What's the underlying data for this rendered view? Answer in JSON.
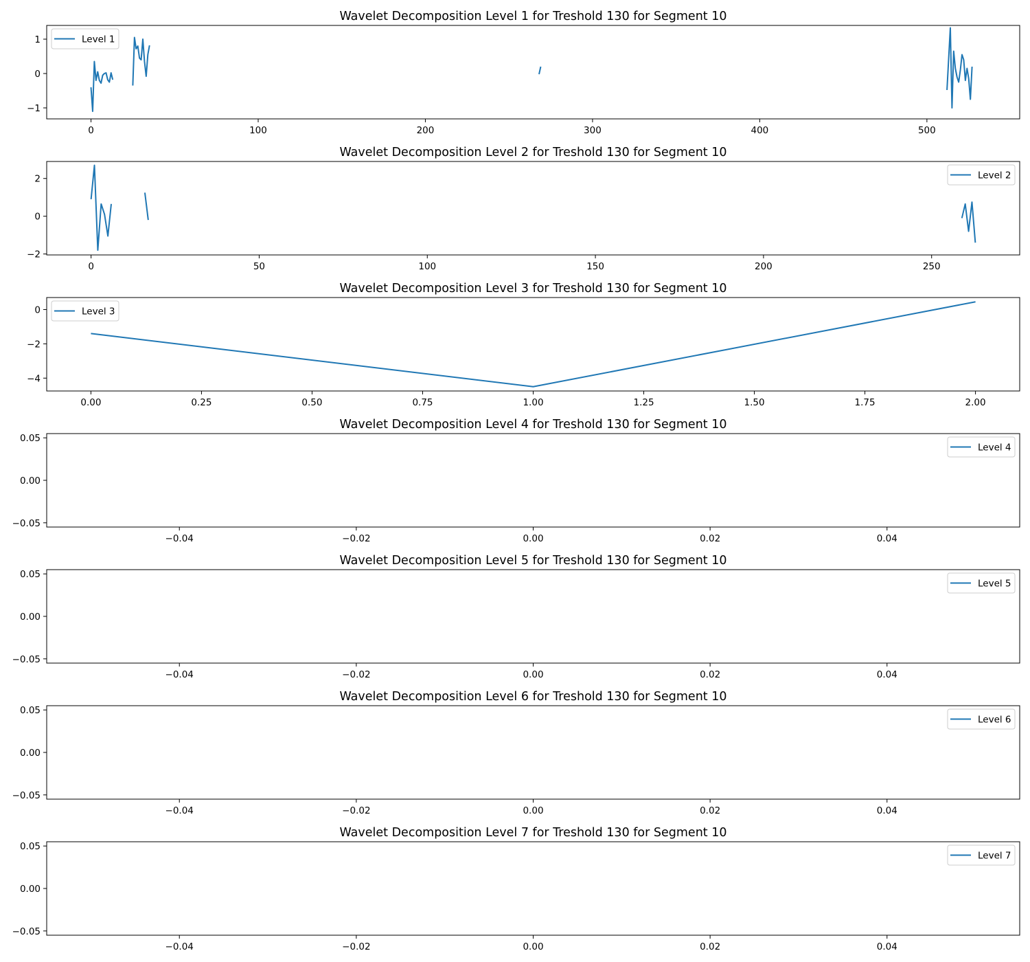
{
  "chart_data": [
    {
      "type": "line",
      "title": "Wavelet Decomposition Level 1 for Treshold 130 for Segment 10",
      "xlim": [
        -26.5,
        555.5
      ],
      "ylim": [
        -1.32,
        1.4
      ],
      "xticks": [
        0,
        100,
        200,
        300,
        400,
        500
      ],
      "xtick_labels": [
        "0",
        "100",
        "200",
        "300",
        "400",
        "500"
      ],
      "yticks": [
        -1,
        0,
        1
      ],
      "ytick_labels": [
        "−1",
        "0",
        "1"
      ],
      "legend": "top-left",
      "series": [
        {
          "name": "Level 1",
          "color": "#1f77b4",
          "segments": [
            [
              [
                0,
                -0.4
              ],
              [
                1,
                -1.1
              ],
              [
                2,
                0.35
              ],
              [
                3,
                -0.2
              ],
              [
                4,
                0.05
              ],
              [
                5,
                -0.2
              ],
              [
                6,
                -0.28
              ],
              [
                7,
                -0.05
              ],
              [
                8,
                0.0
              ],
              [
                9,
                0.02
              ],
              [
                10,
                -0.18
              ],
              [
                11,
                -0.25
              ],
              [
                12,
                0.02
              ],
              [
                13,
                -0.18
              ]
            ],
            [
              [
                25,
                -0.35
              ],
              [
                26,
                1.05
              ],
              [
                27,
                0.72
              ],
              [
                28,
                0.8
              ],
              [
                29,
                0.45
              ],
              [
                30,
                0.4
              ],
              [
                31,
                1.0
              ],
              [
                32,
                0.35
              ],
              [
                33,
                -0.08
              ],
              [
                34,
                0.55
              ],
              [
                35,
                0.82
              ]
            ],
            [
              [
                268,
                -0.02
              ],
              [
                269,
                0.2
              ]
            ],
            [
              [
                512,
                -0.48
              ],
              [
                514,
                1.33
              ],
              [
                515,
                -1.0
              ],
              [
                516,
                0.65
              ],
              [
                517,
                0.15
              ],
              [
                518,
                -0.1
              ],
              [
                519,
                -0.25
              ],
              [
                520,
                0.1
              ],
              [
                521,
                0.55
              ],
              [
                522,
                0.4
              ],
              [
                523,
                -0.2
              ],
              [
                524,
                0.15
              ],
              [
                525,
                -0.15
              ],
              [
                526,
                -0.75
              ],
              [
                527,
                0.2
              ]
            ]
          ]
        }
      ]
    },
    {
      "type": "line",
      "title": "Wavelet Decomposition Level 2 for Treshold 130 for Segment 10",
      "xlim": [
        -13.2,
        276.2
      ],
      "ylim": [
        -2.05,
        2.9
      ],
      "xticks": [
        0,
        50,
        100,
        150,
        200,
        250
      ],
      "xtick_labels": [
        "0",
        "50",
        "100",
        "150",
        "200",
        "250"
      ],
      "yticks": [
        -2,
        0,
        2
      ],
      "ytick_labels": [
        "−2",
        "0",
        "2"
      ],
      "legend": "top-right",
      "series": [
        {
          "name": "Level 2",
          "color": "#1f77b4",
          "segments": [
            [
              [
                0,
                0.9
              ],
              [
                1,
                2.7
              ],
              [
                2,
                -1.8
              ],
              [
                3,
                0.65
              ],
              [
                4,
                0.1
              ],
              [
                5,
                -1.05
              ],
              [
                6,
                0.65
              ]
            ],
            [
              [
                16,
                1.25
              ],
              [
                17,
                -0.2
              ]
            ],
            [
              [
                259,
                -0.1
              ],
              [
                260,
                0.65
              ],
              [
                261,
                -0.8
              ],
              [
                262,
                0.75
              ],
              [
                263,
                -1.4
              ]
            ]
          ]
        }
      ]
    },
    {
      "type": "line",
      "title": "Wavelet Decomposition Level 3 for Treshold 130 for Segment 10",
      "xlim": [
        -0.1,
        2.1
      ],
      "ylim": [
        -4.75,
        0.7
      ],
      "xticks": [
        0,
        0.25,
        0.5,
        0.75,
        1,
        1.25,
        1.5,
        1.75,
        2
      ],
      "xtick_labels": [
        "0.00",
        "0.25",
        "0.50",
        "0.75",
        "1.00",
        "1.25",
        "1.50",
        "1.75",
        "2.00"
      ],
      "yticks": [
        -4,
        -2,
        0
      ],
      "ytick_labels": [
        "−4",
        "−2",
        "0"
      ],
      "legend": "top-left",
      "series": [
        {
          "name": "Level 3",
          "color": "#1f77b4",
          "segments": [
            [
              [
                0,
                -1.4
              ],
              [
                1,
                -4.5
              ],
              [
                2,
                0.45
              ]
            ]
          ]
        }
      ]
    },
    {
      "type": "line",
      "title": "Wavelet Decomposition Level 4 for Treshold 130 for Segment 10",
      "xlim": [
        -0.055,
        0.055
      ],
      "ylim": [
        -0.055,
        0.055
      ],
      "xticks": [
        -0.04,
        -0.02,
        0,
        0.02,
        0.04
      ],
      "xtick_labels": [
        "−0.04",
        "−0.02",
        "0.00",
        "0.02",
        "0.04"
      ],
      "yticks": [
        -0.05,
        0,
        0.05
      ],
      "ytick_labels": [
        "−0.05",
        "0.00",
        "0.05"
      ],
      "legend": "top-right",
      "series": [
        {
          "name": "Level 4",
          "color": "#1f77b4",
          "segments": []
        }
      ]
    },
    {
      "type": "line",
      "title": "Wavelet Decomposition Level 5 for Treshold 130 for Segment 10",
      "xlim": [
        -0.055,
        0.055
      ],
      "ylim": [
        -0.055,
        0.055
      ],
      "xticks": [
        -0.04,
        -0.02,
        0,
        0.02,
        0.04
      ],
      "xtick_labels": [
        "−0.04",
        "−0.02",
        "0.00",
        "0.02",
        "0.04"
      ],
      "yticks": [
        -0.05,
        0,
        0.05
      ],
      "ytick_labels": [
        "−0.05",
        "0.00",
        "0.05"
      ],
      "legend": "top-right",
      "series": [
        {
          "name": "Level 5",
          "color": "#1f77b4",
          "segments": []
        }
      ]
    },
    {
      "type": "line",
      "title": "Wavelet Decomposition Level 6 for Treshold 130 for Segment 10",
      "xlim": [
        -0.055,
        0.055
      ],
      "ylim": [
        -0.055,
        0.055
      ],
      "xticks": [
        -0.04,
        -0.02,
        0,
        0.02,
        0.04
      ],
      "xtick_labels": [
        "−0.04",
        "−0.02",
        "0.00",
        "0.02",
        "0.04"
      ],
      "yticks": [
        -0.05,
        0,
        0.05
      ],
      "ytick_labels": [
        "−0.05",
        "0.00",
        "0.05"
      ],
      "legend": "top-right",
      "series": [
        {
          "name": "Level 6",
          "color": "#1f77b4",
          "segments": []
        }
      ]
    },
    {
      "type": "line",
      "title": "Wavelet Decomposition Level 7 for Treshold 130 for Segment 10",
      "xlim": [
        -0.055,
        0.055
      ],
      "ylim": [
        -0.055,
        0.055
      ],
      "xticks": [
        -0.04,
        -0.02,
        0,
        0.02,
        0.04
      ],
      "xtick_labels": [
        "−0.04",
        "−0.02",
        "0.00",
        "0.02",
        "0.04"
      ],
      "yticks": [
        -0.05,
        0,
        0.05
      ],
      "ytick_labels": [
        "−0.05",
        "0.00",
        "0.05"
      ],
      "legend": "top-right",
      "series": [
        {
          "name": "Level 7",
          "color": "#1f77b4",
          "segments": []
        }
      ]
    }
  ]
}
